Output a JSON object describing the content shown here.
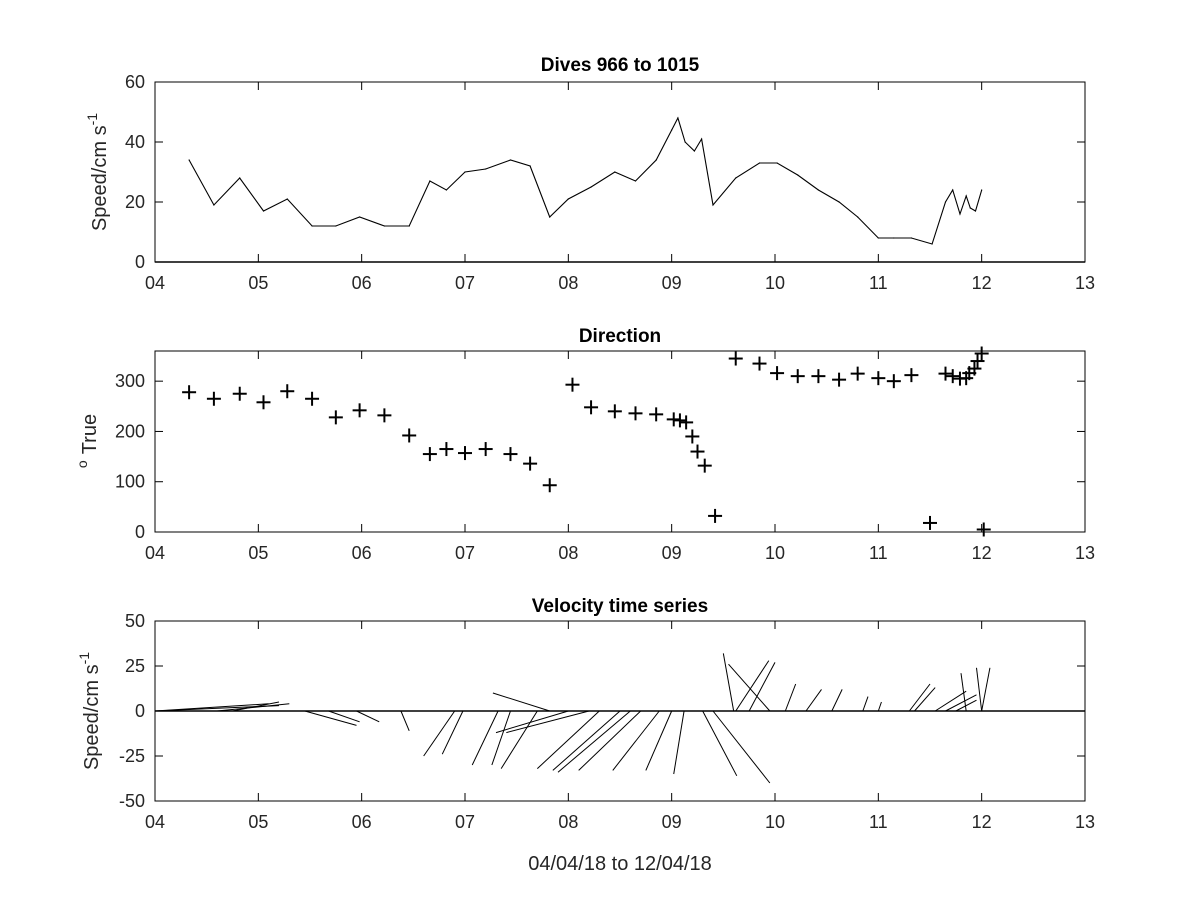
{
  "chart_data": [
    {
      "type": "line",
      "title": "Dives 966 to 1015",
      "ylabel": "Speed/cm s",
      "ylabel_sup": "-1",
      "xlim": [
        4,
        13
      ],
      "ylim": [
        0,
        60
      ],
      "xticks": [
        "04",
        "05",
        "06",
        "07",
        "08",
        "09",
        "10",
        "11",
        "12",
        "13"
      ],
      "yticks": [
        "0",
        "20",
        "40",
        "60"
      ],
      "x": [
        4.33,
        4.57,
        4.82,
        5.05,
        5.28,
        5.52,
        5.75,
        5.98,
        6.22,
        6.46,
        6.66,
        6.82,
        7.0,
        7.2,
        7.44,
        7.63,
        7.82,
        8.0,
        8.22,
        8.45,
        8.65,
        8.85,
        9.0,
        9.06,
        9.13,
        9.22,
        9.29,
        9.4,
        9.62,
        9.85,
        10.02,
        10.22,
        10.42,
        10.62,
        10.8,
        11.0,
        11.15,
        11.32,
        11.52,
        11.65,
        11.72,
        11.79,
        11.85,
        11.89,
        11.94,
        12.0
      ],
      "values": [
        34,
        19,
        28,
        17,
        21,
        12,
        12,
        15,
        12,
        12,
        27,
        24,
        30,
        31,
        34,
        32,
        15,
        21,
        25,
        30,
        27,
        34,
        44,
        48,
        40,
        37,
        41,
        19,
        28,
        33,
        33,
        29,
        24,
        20,
        15,
        8,
        8,
        8,
        6,
        20,
        24,
        16,
        22,
        18,
        17,
        24
      ],
      "grid": false
    },
    {
      "type": "scatter",
      "title": "Direction",
      "ylabel": "True",
      "ylabel_prefix": "o",
      "marker": "+",
      "xlim": [
        4,
        13
      ],
      "ylim": [
        0,
        360
      ],
      "xticks": [
        "04",
        "05",
        "06",
        "07",
        "08",
        "09",
        "10",
        "11",
        "12",
        "13"
      ],
      "yticks": [
        "0",
        "100",
        "200",
        "300"
      ],
      "x": [
        4.33,
        4.57,
        4.82,
        5.05,
        5.28,
        5.52,
        5.75,
        5.98,
        6.22,
        6.46,
        6.66,
        6.82,
        7.0,
        7.2,
        7.44,
        7.63,
        7.82,
        8.04,
        8.22,
        8.45,
        8.65,
        8.85,
        9.02,
        9.08,
        9.14,
        9.2,
        9.25,
        9.32,
        9.42,
        9.62,
        9.85,
        10.02,
        10.22,
        10.42,
        10.62,
        10.8,
        11.0,
        11.15,
        11.32,
        11.5,
        11.65,
        11.72,
        11.79,
        11.85,
        11.88,
        11.93,
        11.96,
        12.0,
        12.02
      ],
      "values": [
        278,
        265,
        275,
        258,
        280,
        265,
        228,
        242,
        232,
        192,
        155,
        165,
        157,
        165,
        155,
        136,
        93,
        293,
        248,
        240,
        236,
        234,
        224,
        222,
        218,
        190,
        160,
        132,
        32,
        345,
        335,
        316,
        310,
        310,
        303,
        315,
        306,
        300,
        312,
        18,
        315,
        310,
        305,
        306,
        316,
        325,
        340,
        355,
        5
      ],
      "grid": false
    },
    {
      "type": "vector-stick",
      "title": "Velocity time series",
      "ylabel": "Speed/cm s",
      "ylabel_sup": "-1",
      "xlabel": "04/04/18 to 12/04/18",
      "xlim": [
        4,
        13
      ],
      "ylim": [
        -50,
        50
      ],
      "xticks": [
        "04",
        "05",
        "06",
        "07",
        "08",
        "09",
        "10",
        "11",
        "12",
        "13"
      ],
      "yticks": [
        "-50",
        "-25",
        "0",
        "25",
        "50"
      ],
      "sticks": [
        {
          "x": 4.0,
          "dx": 1.2,
          "dy": -3
        },
        {
          "x": 4.0,
          "dx": 1.1,
          "dy": -4
        },
        {
          "x": 4.6,
          "dx": 0.7,
          "dy": -4
        },
        {
          "x": 4.75,
          "dx": 0.45,
          "dy": -5
        },
        {
          "x": 5.45,
          "dx": 0.5,
          "dy": 8
        },
        {
          "x": 5.68,
          "dx": 0.3,
          "dy": 6
        },
        {
          "x": 5.95,
          "dx": 0.22,
          "dy": 6
        },
        {
          "x": 6.38,
          "dx": 0.08,
          "dy": 11
        },
        {
          "x": 6.9,
          "dx": -0.3,
          "dy": 25
        },
        {
          "x": 6.98,
          "dx": -0.2,
          "dy": 24
        },
        {
          "x": 7.32,
          "dx": -0.25,
          "dy": 30
        },
        {
          "x": 7.44,
          "dx": -0.18,
          "dy": 30
        },
        {
          "x": 7.7,
          "dx": -0.35,
          "dy": 32
        },
        {
          "x": 7.82,
          "dx": -0.55,
          "dy": -10
        },
        {
          "x": 8.0,
          "dx": -0.7,
          "dy": 12
        },
        {
          "x": 8.2,
          "dx": -0.8,
          "dy": 12
        },
        {
          "x": 8.3,
          "dx": -0.6,
          "dy": 32
        },
        {
          "x": 8.5,
          "dx": -0.65,
          "dy": 33
        },
        {
          "x": 8.6,
          "dx": -0.7,
          "dy": 34
        },
        {
          "x": 8.7,
          "dx": -0.6,
          "dy": 33
        },
        {
          "x": 8.88,
          "dx": -0.45,
          "dy": 33
        },
        {
          "x": 9.0,
          "dx": -0.25,
          "dy": 33
        },
        {
          "x": 9.12,
          "dx": -0.1,
          "dy": 35
        },
        {
          "x": 9.3,
          "dx": 0.33,
          "dy": 36
        },
        {
          "x": 9.4,
          "dx": 0.55,
          "dy": 40
        },
        {
          "x": 9.6,
          "dx": -0.1,
          "dy": -32
        },
        {
          "x": 9.62,
          "dx": 0.32,
          "dy": -28
        },
        {
          "x": 9.75,
          "dx": 0.25,
          "dy": -27
        },
        {
          "x": 9.95,
          "dx": -0.4,
          "dy": -26
        },
        {
          "x": 10.1,
          "dx": 0.1,
          "dy": -15
        },
        {
          "x": 10.3,
          "dx": 0.15,
          "dy": -12
        },
        {
          "x": 10.55,
          "dx": 0.1,
          "dy": -12
        },
        {
          "x": 10.85,
          "dx": 0.05,
          "dy": -8
        },
        {
          "x": 11.0,
          "dx": 0.03,
          "dy": -5
        },
        {
          "x": 11.3,
          "dx": 0.2,
          "dy": -15
        },
        {
          "x": 11.35,
          "dx": 0.2,
          "dy": -13
        },
        {
          "x": 11.55,
          "dx": 0.3,
          "dy": -11
        },
        {
          "x": 11.65,
          "dx": 0.3,
          "dy": -9
        },
        {
          "x": 11.75,
          "dx": 0.2,
          "dy": -6
        },
        {
          "x": 11.85,
          "dx": -0.05,
          "dy": -21
        },
        {
          "x": 12.0,
          "dx": -0.05,
          "dy": -24
        },
        {
          "x": 12.0,
          "dx": 0.08,
          "dy": -24
        }
      ],
      "grid": false
    }
  ],
  "colors": {
    "axis": "#000000",
    "text": "#262626",
    "background": "#ffffff"
  }
}
